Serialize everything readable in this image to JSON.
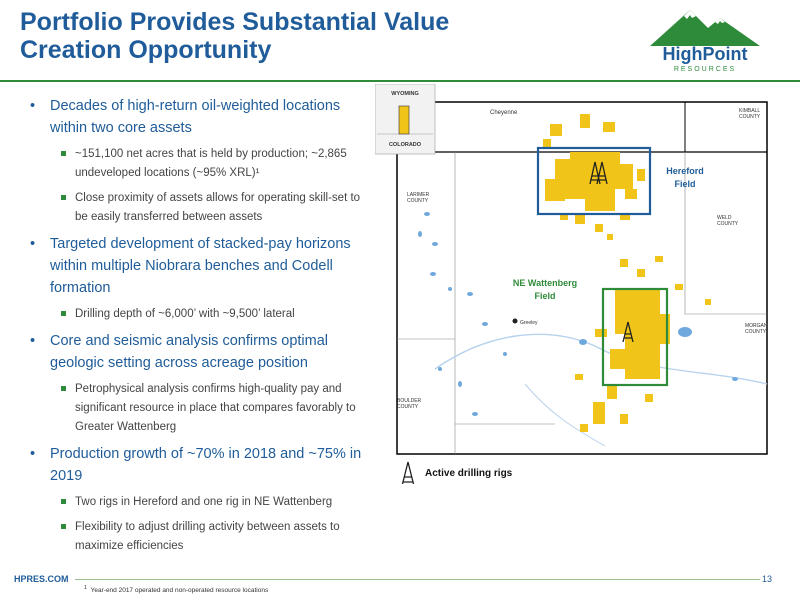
{
  "header": {
    "title_line1": "Portfolio Provides Substantial Value",
    "title_line2": "Creation Opportunity"
  },
  "logo": {
    "name": "HighPoint",
    "sub": "RESOURCES"
  },
  "bullets": [
    {
      "text": "Decades of high-return oil-weighted locations within two core assets",
      "subs": [
        "~151,100 net acres that is held by production; ~2,865 undeveloped locations (~95% XRL)¹",
        "Close proximity of assets allows for operating skill-set to be easily transferred between assets"
      ]
    },
    {
      "text": "Targeted development of stacked-pay horizons within multiple Niobrara benches and Codell formation",
      "subs": [
        "Drilling depth of ~6,000’ with ~9,500’ lateral"
      ]
    },
    {
      "text": "Core and seismic analysis confirms optimal geologic setting across acreage position",
      "subs": [
        "Petrophysical analysis confirms high-quality pay and significant resource in place that compares favorably to Greater Wattenberg"
      ]
    },
    {
      "text": "Production growth of ~70% in 2018 and ~75% in 2019",
      "subs": [
        "Two rigs in Hereford and one rig in NE Wattenberg",
        "Flexibility to adjust drilling activity between assets to maximize efficiencies"
      ]
    }
  ],
  "map": {
    "inset_top": "WYOMING",
    "inset_bottom": "COLORADO",
    "cheyenne": "Cheyenne",
    "kimball": "KIMBALL\nCOUNTY",
    "larimer": "LARIMER\nCOUNTY",
    "weld": "WELD\nCOUNTY",
    "morgan": "MORGAN\nCOUNTY",
    "boulder": "BOULDER\nCOUNTY",
    "greeley": "Greeley",
    "hereford_l1": "Hereford",
    "hereford_l2": "Field",
    "wattenberg_l1": "NE Wattenberg",
    "wattenberg_l2": "Field",
    "legend": "Active drilling rigs"
  },
  "footer": {
    "site": "HPRES.COM",
    "page": "13",
    "footnote_mark": "1",
    "footnote": "Year-end 2017 operated and non-operated resource locations"
  }
}
